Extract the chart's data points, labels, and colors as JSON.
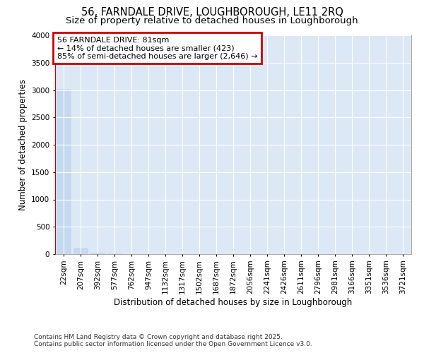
{
  "title_line1": "56, FARNDALE DRIVE, LOUGHBOROUGH, LE11 2RQ",
  "title_line2": "Size of property relative to detached houses in Loughborough",
  "xlabel": "Distribution of detached houses by size in Loughborough",
  "ylabel": "Number of detached properties",
  "annotation_line1": "56 FARNDALE DRIVE: 81sqm",
  "annotation_line2": "← 14% of detached houses are smaller (423)",
  "annotation_line3": "85% of semi-detached houses are larger (2,646) →",
  "bar_color": "#c5d8f0",
  "vline_color": "#cc0000",
  "annotation_box_color": "#cc0000",
  "background_color": "#dce8f5",
  "grid_color": "#ffffff",
  "categories": [
    "22sqm",
    "207sqm",
    "392sqm",
    "577sqm",
    "762sqm",
    "947sqm",
    "1132sqm",
    "1317sqm",
    "1502sqm",
    "1687sqm",
    "1872sqm",
    "2056sqm",
    "2241sqm",
    "2426sqm",
    "2611sqm",
    "2796sqm",
    "2981sqm",
    "3166sqm",
    "3351sqm",
    "3536sqm",
    "3721sqm"
  ],
  "values": [
    3015,
    120,
    30,
    10,
    5,
    3,
    2,
    1,
    1,
    1,
    1,
    1,
    1,
    1,
    1,
    1,
    1,
    1,
    1,
    1,
    1
  ],
  "ylim": [
    0,
    4000
  ],
  "yticks": [
    0,
    500,
    1000,
    1500,
    2000,
    2500,
    3000,
    3500,
    4000
  ],
  "footer_line1": "Contains HM Land Registry data © Crown copyright and database right 2025.",
  "footer_line2": "Contains public sector information licensed under the Open Government Licence v3.0.",
  "title_fontsize": 10.5,
  "subtitle_fontsize": 9.5,
  "axis_label_fontsize": 8.5,
  "tick_fontsize": 7.5,
  "annotation_fontsize": 8,
  "footer_fontsize": 6.5
}
